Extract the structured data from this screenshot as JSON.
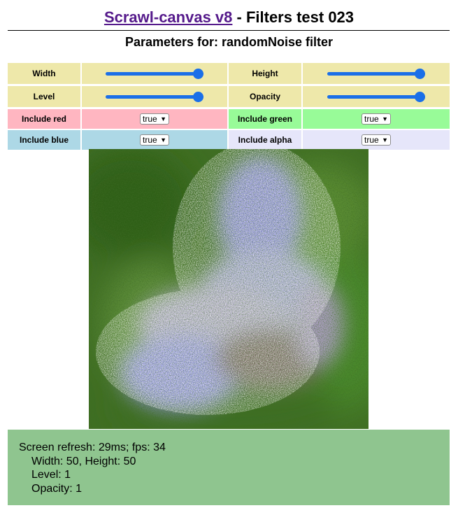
{
  "header": {
    "link_text": "Scrawl-canvas v8",
    "title_suffix": " - Filters test 023",
    "subtitle": "Parameters for: randomNoise filter"
  },
  "controls": {
    "width": {
      "label": "Width",
      "value_fraction": 1.0
    },
    "height": {
      "label": "Height",
      "value_fraction": 1.0
    },
    "level": {
      "label": "Level",
      "value_fraction": 1.0
    },
    "opacity": {
      "label": "Opacity",
      "value_fraction": 1.0
    },
    "include_red": {
      "label": "Include red",
      "value": "true"
    },
    "include_green": {
      "label": "Include green",
      "value": "true"
    },
    "include_blue": {
      "label": "Include blue",
      "value": "true"
    },
    "include_alpha": {
      "label": "Include alpha",
      "value": "true"
    }
  },
  "colors": {
    "label_bg": "#eee8aa",
    "red_bg": "#ffb6c1",
    "green_bg": "#98fb98",
    "blue_bg": "#add8e6",
    "alpha_bg": "#e6e6fa",
    "slider_accent": "#1a6fe8",
    "status_bg": "#8fc58f"
  },
  "status": {
    "refresh": "Screen refresh: 29ms; fps: 34",
    "dimensions": "Width: 50, Height: 50",
    "level": "Level: 1",
    "opacity": "Opacity: 1"
  }
}
